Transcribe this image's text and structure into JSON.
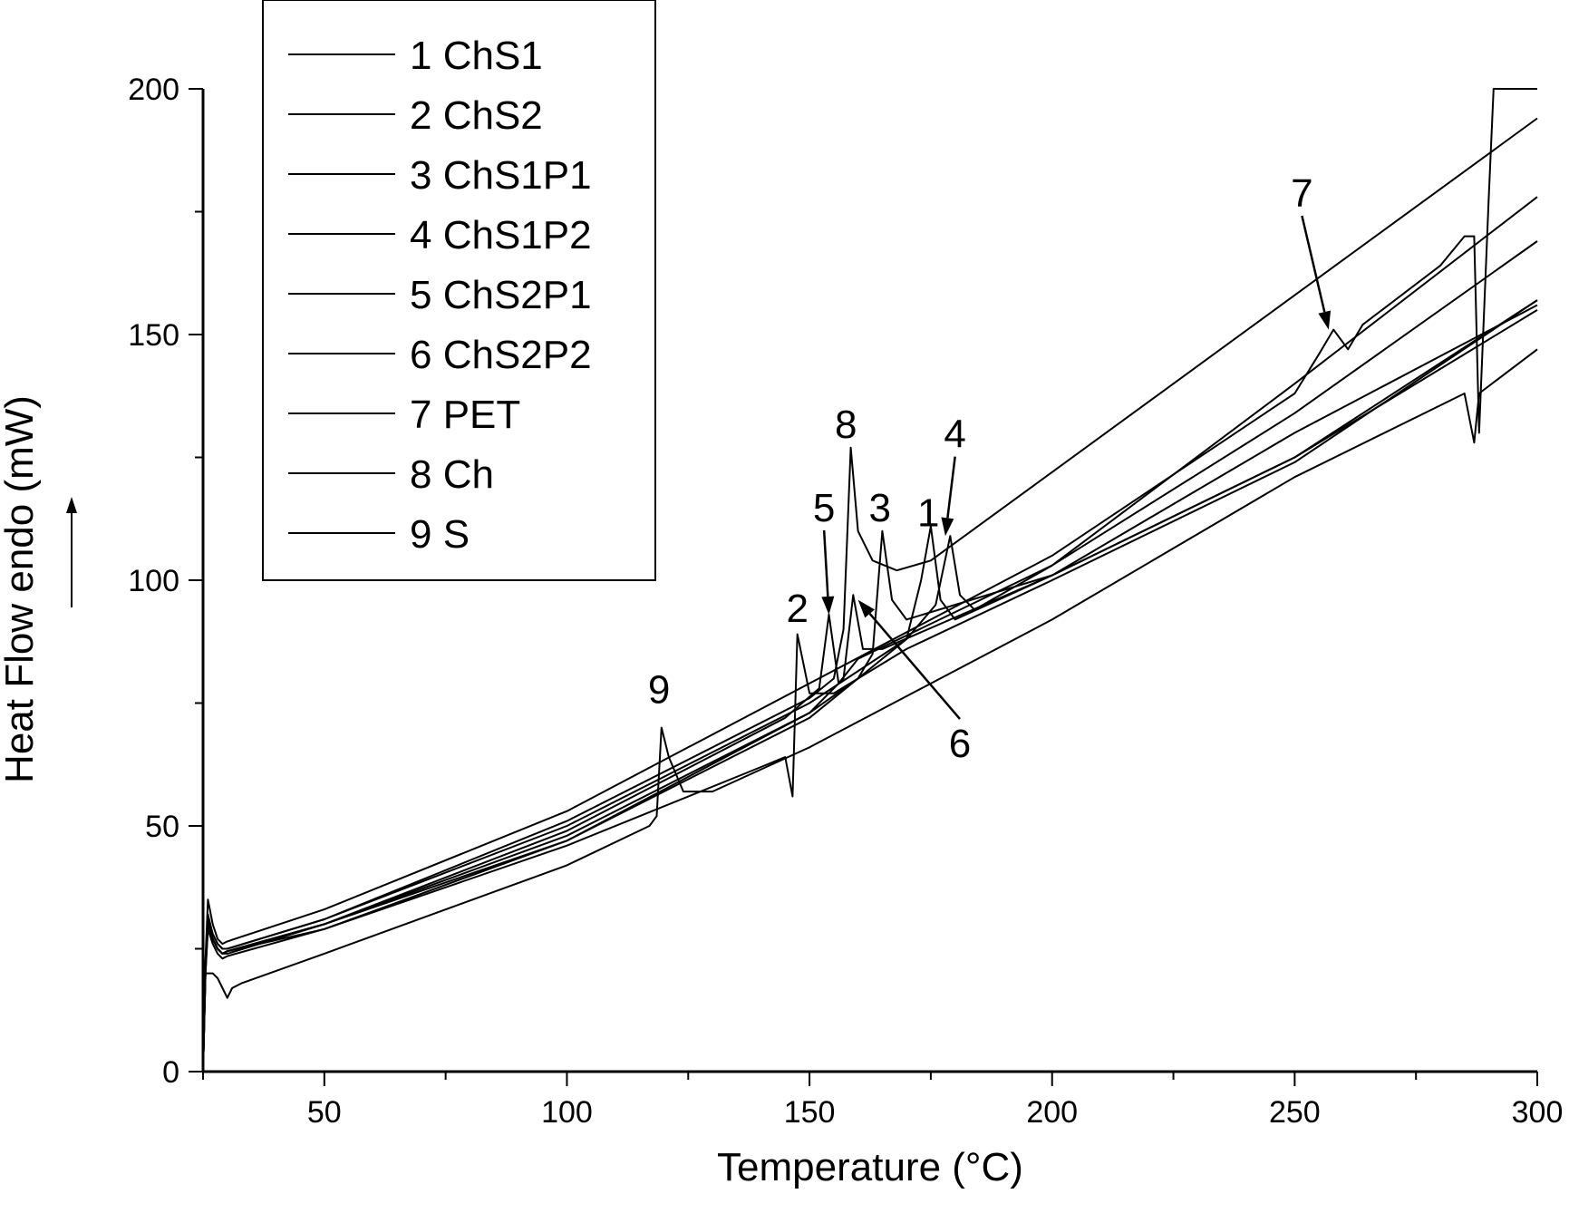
{
  "chart_data": {
    "type": "line",
    "title": "",
    "xlabel": "Temperature (°C)",
    "ylabel": "Heat Flow endo (mW)",
    "ylabel_arrow": "→",
    "xlim": [
      25,
      300
    ],
    "ylim": [
      0,
      200
    ],
    "x_ticks": [
      50,
      100,
      150,
      200,
      250,
      300
    ],
    "y_ticks": [
      0,
      50,
      100,
      150,
      200
    ],
    "x_tick_labels": [
      "50",
      "100",
      "150",
      "200",
      "250",
      "300"
    ],
    "y_tick_labels": [
      "0",
      "50",
      "100",
      "150",
      "200"
    ],
    "grid": false,
    "legend_position": "top-left",
    "line_color": "#000000",
    "series": [
      {
        "name": "1 ChS1",
        "x": [
          25,
          25.5,
          26,
          27,
          28,
          29,
          30,
          50,
          100,
          150,
          170,
          173,
          175,
          177,
          180,
          200,
          250,
          300
        ],
        "y": [
          0,
          20,
          30,
          27,
          25,
          24,
          24.5,
          30,
          47,
          72,
          88,
          100,
          111,
          96,
          92,
          101,
          125,
          155
        ]
      },
      {
        "name": "2 ChS2",
        "x": [
          25,
          25.5,
          26,
          27,
          28,
          29,
          30,
          50,
          100,
          140,
          145,
          146.5,
          147.5,
          150,
          155,
          170,
          200,
          250,
          300
        ],
        "y": [
          0,
          20,
          29,
          26,
          24,
          23,
          23.5,
          29,
          46,
          62,
          64,
          56,
          89,
          77,
          77,
          86,
          100,
          124,
          157
        ]
      },
      {
        "name": "3 ChS1P1",
        "x": [
          25,
          25.5,
          26,
          27,
          28,
          29,
          30,
          50,
          100,
          150,
          160,
          163,
          165,
          167,
          170,
          200,
          250,
          300
        ],
        "y": [
          0,
          21,
          30,
          27,
          25,
          24,
          24,
          30,
          48,
          73,
          80,
          85,
          110,
          96,
          92,
          101,
          125,
          157
        ]
      },
      {
        "name": "4 ChS1P2",
        "x": [
          25,
          25.5,
          26,
          27,
          28,
          29,
          30,
          50,
          100,
          150,
          170,
          176,
          179,
          181,
          184,
          200,
          250,
          300
        ],
        "y": [
          0,
          22,
          32,
          28,
          26,
          25,
          25,
          31,
          50,
          75,
          88,
          95,
          109,
          97,
          94,
          103,
          140,
          178
        ]
      },
      {
        "name": "5 ChS2P1",
        "x": [
          25,
          25.5,
          26,
          27,
          28,
          29,
          30,
          50,
          100,
          145,
          152,
          154,
          156,
          160,
          200,
          250,
          300
        ],
        "y": [
          0,
          22,
          31,
          27,
          25,
          24,
          24.5,
          30,
          49,
          72,
          78,
          93,
          79,
          84,
          103,
          134,
          169
        ]
      },
      {
        "name": "6 ChS2P2",
        "x": [
          25,
          25.5,
          26,
          27,
          28,
          29,
          30,
          50,
          100,
          150,
          157,
          159,
          161,
          165,
          200,
          250,
          300
        ],
        "y": [
          0,
          21,
          30,
          27,
          25,
          24,
          24.5,
          29,
          47,
          73,
          80,
          97,
          86,
          86,
          101,
          130,
          156
        ]
      },
      {
        "name": "7 PET",
        "x": [
          25,
          25.5,
          26,
          27,
          28,
          29,
          30,
          50,
          100,
          150,
          200,
          250,
          255,
          258,
          261,
          264,
          268,
          280,
          285,
          287,
          288,
          290,
          291,
          300
        ],
        "y": [
          0,
          23,
          35,
          30,
          27,
          26,
          26.5,
          33,
          53,
          79,
          105,
          138,
          146,
          151,
          147,
          152,
          155,
          164,
          170,
          170,
          130,
          178,
          200,
          200
        ]
      },
      {
        "name": "8 Ch",
        "x": [
          25,
          25.5,
          26,
          27,
          28,
          29,
          30,
          50,
          100,
          150,
          155,
          157,
          158.5,
          160,
          163,
          168,
          175,
          200,
          250,
          300
        ],
        "y": [
          0,
          22,
          31,
          28,
          26,
          25,
          25,
          31,
          51,
          76,
          80,
          90,
          127,
          110,
          104,
          102,
          104,
          122,
          158,
          194
        ]
      },
      {
        "name": "9 S",
        "x": [
          25,
          25.5,
          26,
          27,
          28,
          30,
          31,
          33,
          50,
          100,
          117,
          118.5,
          119.5,
          121,
          124,
          130,
          150,
          200,
          250,
          285,
          287,
          288,
          300
        ],
        "y": [
          0,
          20,
          20,
          20,
          19,
          15,
          17,
          18,
          24,
          42,
          50,
          52,
          70,
          64,
          57,
          57,
          66,
          92,
          121,
          138,
          128,
          138,
          147
        ]
      }
    ],
    "annotations": [
      {
        "text": "9",
        "x": 119,
        "y": 75
      },
      {
        "text": "2",
        "x": 147.5,
        "y": 91.5
      },
      {
        "text": "5",
        "x": 153,
        "y": 112,
        "arrow_to": [
          154,
          93
        ]
      },
      {
        "text": "8",
        "x": 157.5,
        "y": 129
      },
      {
        "text": "3",
        "x": 164.5,
        "y": 112
      },
      {
        "text": "1",
        "x": 174.5,
        "y": 111
      },
      {
        "text": "4",
        "x": 180,
        "y": 127,
        "arrow_to": [
          178,
          109
        ]
      },
      {
        "text": "6",
        "x": 181,
        "y": 64,
        "arrow_to": [
          160,
          96
        ]
      },
      {
        "text": "7",
        "x": 251.5,
        "y": 176,
        "arrow_to": [
          257,
          151
        ]
      }
    ]
  }
}
